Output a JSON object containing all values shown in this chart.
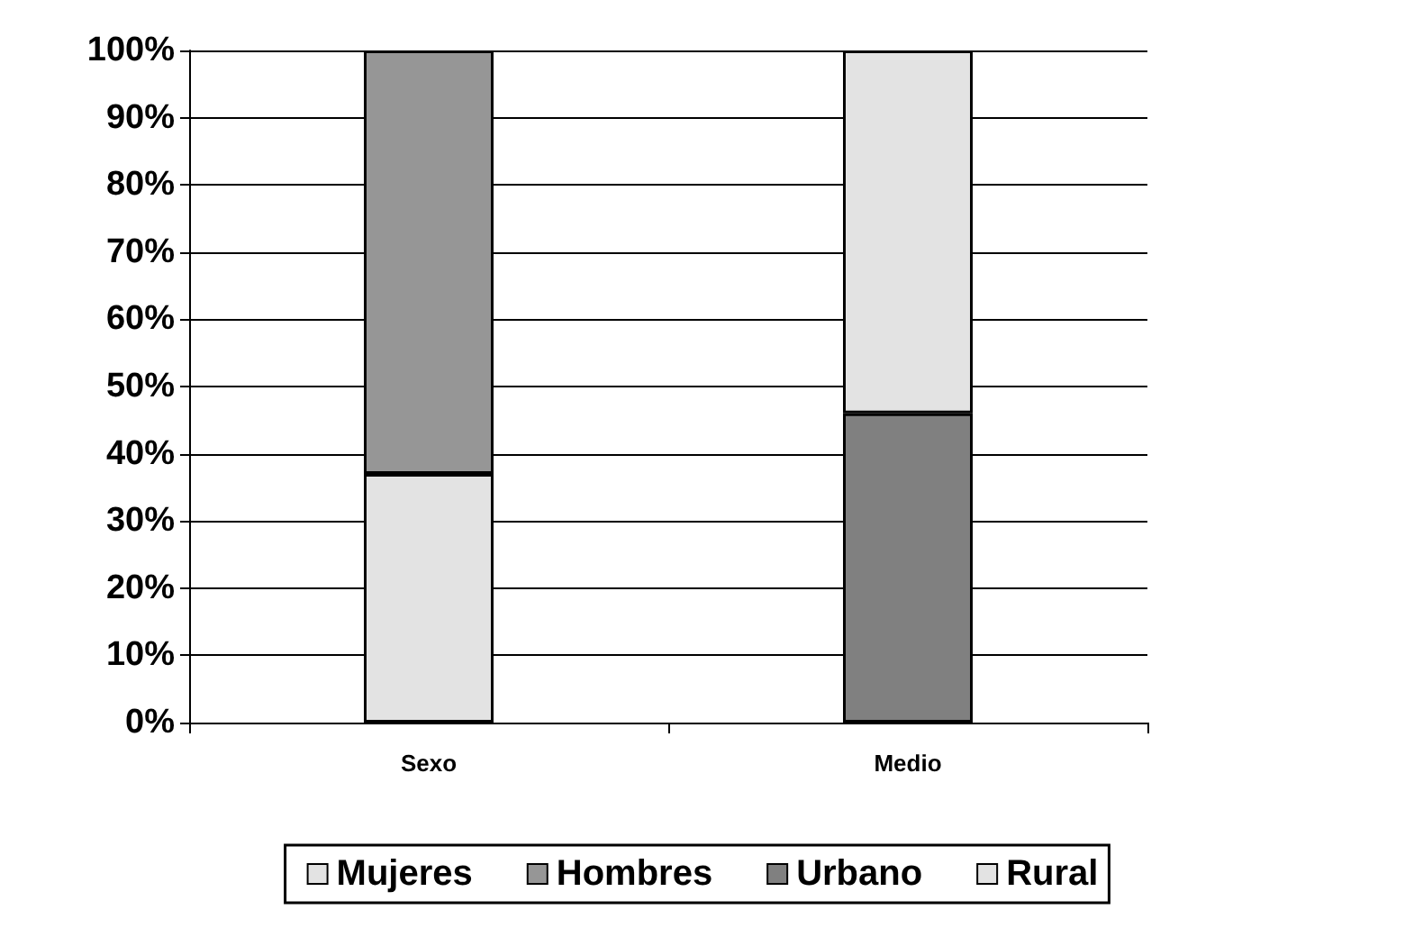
{
  "chart_data": {
    "type": "bar",
    "stacked": true,
    "categories": [
      "Sexo",
      "Medio"
    ],
    "series": [
      {
        "name": "Mujeres",
        "color": "#e3e3e3",
        "values": [
          37,
          null
        ]
      },
      {
        "name": "Hombres",
        "color": "#969696",
        "values": [
          63,
          null
        ]
      },
      {
        "name": "Urbano",
        "color": "#808080",
        "values": [
          null,
          46
        ]
      },
      {
        "name": "Rural",
        "color": "#e3e3e3",
        "values": [
          null,
          54
        ]
      }
    ],
    "ylim": [
      0,
      100
    ],
    "yticks": [
      {
        "value": 0,
        "label": "0%"
      },
      {
        "value": 10,
        "label": "10%"
      },
      {
        "value": 20,
        "label": "20%"
      },
      {
        "value": 30,
        "label": "30%"
      },
      {
        "value": 40,
        "label": "40%"
      },
      {
        "value": 50,
        "label": "50%"
      },
      {
        "value": 60,
        "label": "60%"
      },
      {
        "value": 70,
        "label": "70%"
      },
      {
        "value": 80,
        "label": "80%"
      },
      {
        "value": 90,
        "label": "90%"
      },
      {
        "value": 100,
        "label": "100%"
      }
    ],
    "grid": "y",
    "legend": "bottom"
  }
}
